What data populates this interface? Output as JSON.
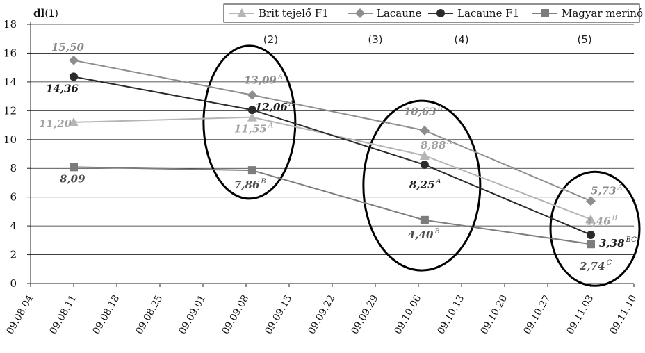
{
  "chart_data": {
    "type": "line",
    "y_unit_label": "dl",
    "y_unit_ref": "(1)",
    "ylim": [
      0,
      18
    ],
    "yticks": [
      0,
      2,
      4,
      6,
      8,
      10,
      12,
      14,
      16,
      18
    ],
    "x_tick_labels": [
      "09.08.04",
      "09.08.11",
      "09.08.18",
      "09.08.25",
      "09.09.01",
      "09.09.08",
      "09.09.15",
      "09.09.22",
      "09.09.29",
      "09.10.06",
      "09.10.13",
      "09.10.20",
      "09.10.27",
      "09.11.03",
      "09.11.10"
    ],
    "grid": "horizontal",
    "legend_position": "top-right",
    "group_labels": [
      {
        "text": "(2)",
        "x": "09.09.12"
      },
      {
        "text": "(3)",
        "x": "09.09.29"
      },
      {
        "text": "(4)",
        "x": "09.10.13"
      },
      {
        "text": "(5)",
        "x": "09.11.02"
      }
    ],
    "highlighted_dates": [
      "09.09.09",
      "09.10.07",
      "09.11.03"
    ],
    "series": [
      {
        "name": "Brit tejelő F1",
        "color": "#b5b5b5",
        "marker": "triangle",
        "points": [
          {
            "x": "09.08.11",
            "y": 11.2,
            "label": "11,20",
            "sup": ""
          },
          {
            "x": "09.09.09",
            "y": 11.55,
            "label": "11,55",
            "sup": "A"
          },
          {
            "x": "09.10.07",
            "y": 8.88,
            "label": "8,88",
            "sup": "A"
          },
          {
            "x": "09.11.03",
            "y": 4.46,
            "label": "4,46",
            "sup": "B"
          }
        ]
      },
      {
        "name": "Lacaune",
        "color": "#8e8e8e",
        "marker": "diamond",
        "points": [
          {
            "x": "09.08.11",
            "y": 15.5,
            "label": "15,50",
            "sup": ""
          },
          {
            "x": "09.09.09",
            "y": 13.09,
            "label": "13,09",
            "sup": "A"
          },
          {
            "x": "09.10.07",
            "y": 10.63,
            "label": "10,63",
            "sup": "A"
          },
          {
            "x": "09.11.03",
            "y": 5.73,
            "label": "5,73",
            "sup": "A"
          }
        ]
      },
      {
        "name": "Lacaune F1",
        "color": "#2b2b2b",
        "marker": "circle",
        "points": [
          {
            "x": "09.08.11",
            "y": 14.36,
            "label": "14,36",
            "sup": ""
          },
          {
            "x": "09.09.09",
            "y": 12.06,
            "label": "12,06",
            "sup": "A"
          },
          {
            "x": "09.10.07",
            "y": 8.25,
            "label": "8,25",
            "sup": "A"
          },
          {
            "x": "09.11.03",
            "y": 3.38,
            "label": "3,38",
            "sup": "BC"
          }
        ]
      },
      {
        "name": "Magyar merinó",
        "color": "#7c7c7c",
        "marker": "square",
        "points": [
          {
            "x": "09.08.11",
            "y": 8.09,
            "label": "8,09",
            "sup": ""
          },
          {
            "x": "09.09.09",
            "y": 7.86,
            "label": "7,86",
            "sup": "B"
          },
          {
            "x": "09.10.07",
            "y": 4.4,
            "label": "4,40",
            "sup": "B"
          },
          {
            "x": "09.11.03",
            "y": 2.74,
            "label": "2,74",
            "sup": "C"
          }
        ]
      }
    ]
  }
}
